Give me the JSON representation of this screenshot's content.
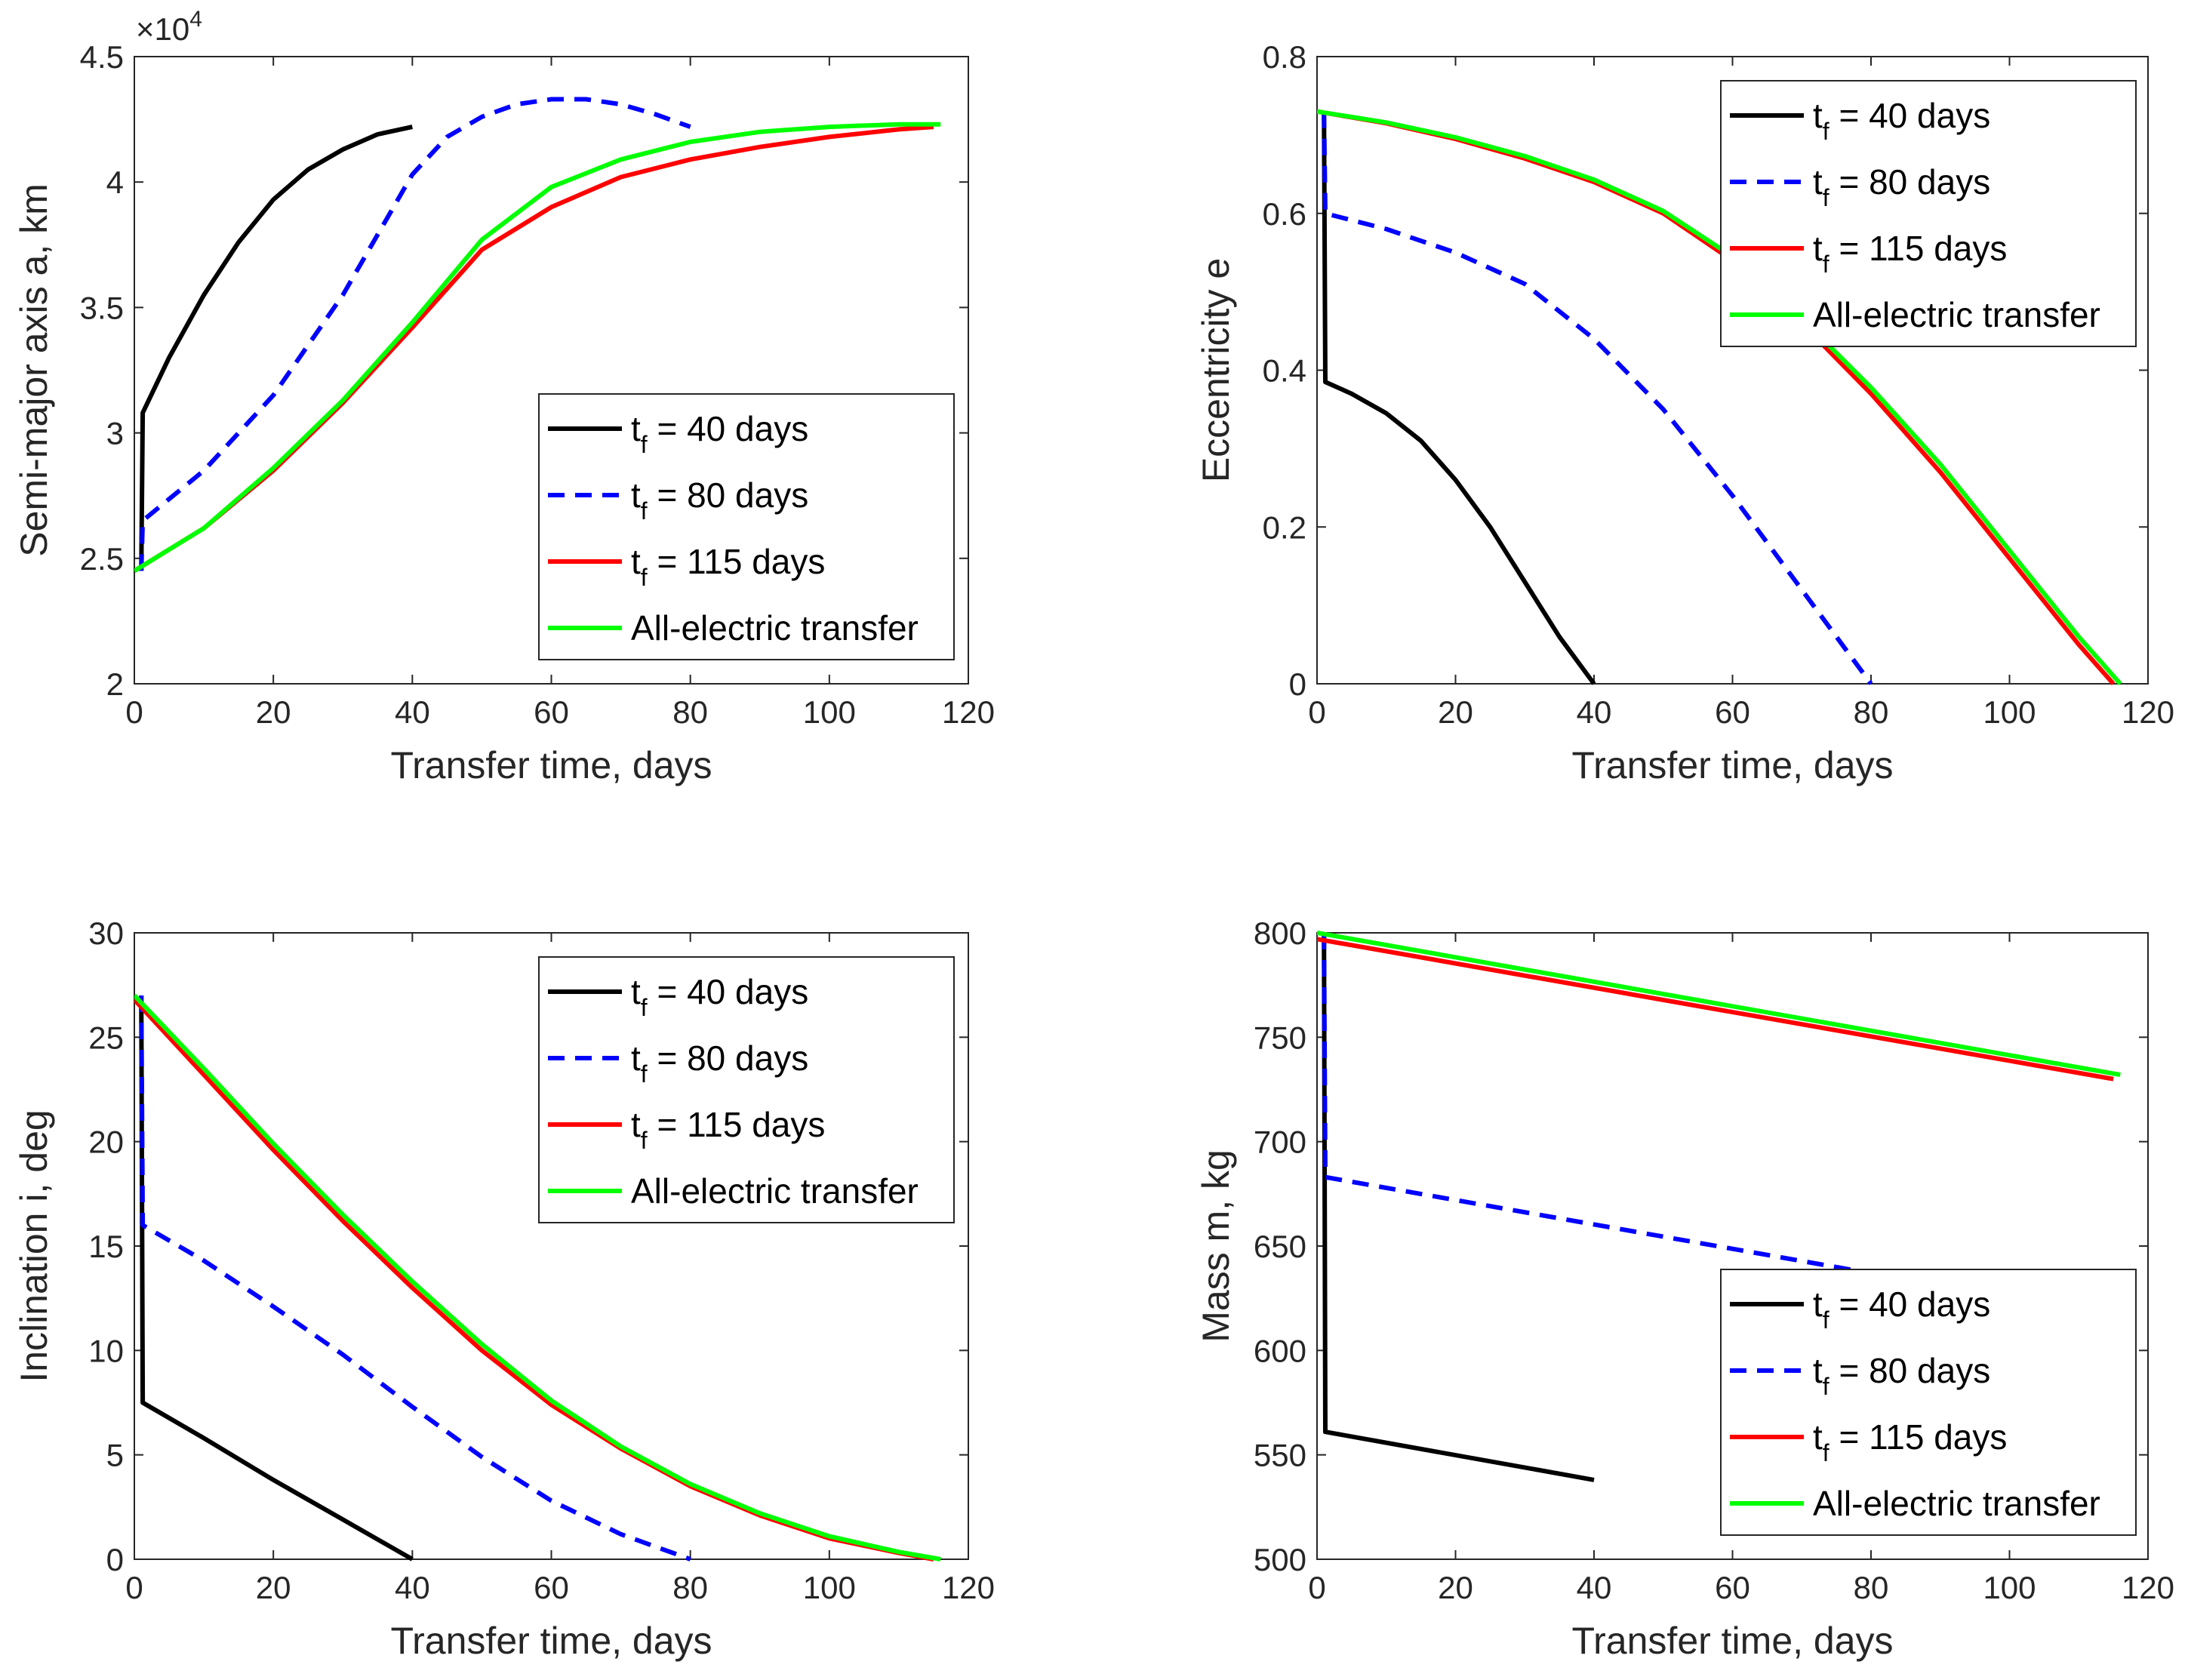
{
  "colors": {
    "tf40": "#000000",
    "tf80": "#0000ff",
    "tf115": "#ff0000",
    "all_electric": "#00ff00",
    "axis": "#262626"
  },
  "chart_data": [
    {
      "type": "line",
      "id": "semi-major-axis",
      "xlabel": "Transfer time, days",
      "ylabel": "Semi-major axis a, km",
      "xlim": [
        0,
        120
      ],
      "ylim": [
        2,
        4.5
      ],
      "xticks": [
        "0",
        "20",
        "40",
        "60",
        "80",
        "100",
        "120"
      ],
      "yticks": [
        "2",
        "2.5",
        "3",
        "3.5",
        "4",
        "4.5"
      ],
      "exponent_label": "×10",
      "exponent_power": "4",
      "legend_position": "lower-right",
      "legend": [
        {
          "key": "tf40",
          "prefix": "t",
          "sub": "f",
          "label": " = 40 days"
        },
        {
          "key": "tf80",
          "prefix": "t",
          "sub": "f",
          "label": " = 80 days"
        },
        {
          "key": "tf115",
          "prefix": "t",
          "sub": "f",
          "label": " = 115 days"
        },
        {
          "key": "all_electric",
          "prefix": "",
          "sub": "",
          "label": "All-electric transfer"
        }
      ],
      "series": [
        {
          "key": "tf40",
          "style": "solid",
          "x": [
            1,
            1,
            1.2,
            5,
            10,
            15,
            20,
            25,
            30,
            35,
            40
          ],
          "y": [
            2.45,
            2.45,
            3.08,
            3.3,
            3.55,
            3.76,
            3.93,
            4.05,
            4.13,
            4.19,
            4.22
          ]
        },
        {
          "key": "tf80",
          "style": "dashed",
          "x": [
            1,
            1,
            1.2,
            10,
            20,
            30,
            40,
            45,
            50,
            55,
            60,
            65,
            70,
            75,
            80
          ],
          "y": [
            2.45,
            2.45,
            2.65,
            2.85,
            3.15,
            3.55,
            4.03,
            4.18,
            4.26,
            4.31,
            4.33,
            4.33,
            4.31,
            4.27,
            4.22
          ]
        },
        {
          "key": "tf115",
          "style": "solid",
          "x": [
            0,
            10,
            20,
            30,
            40,
            50,
            60,
            70,
            80,
            90,
            100,
            110,
            115
          ],
          "y": [
            2.45,
            2.62,
            2.85,
            3.12,
            3.42,
            3.73,
            3.9,
            4.02,
            4.09,
            4.14,
            4.18,
            4.21,
            4.22
          ]
        },
        {
          "key": "all_electric",
          "style": "solid",
          "x": [
            0,
            10,
            20,
            30,
            40,
            50,
            60,
            70,
            80,
            90,
            100,
            110,
            116
          ],
          "y": [
            2.45,
            2.62,
            2.86,
            3.13,
            3.44,
            3.77,
            3.98,
            4.09,
            4.16,
            4.2,
            4.22,
            4.23,
            4.23
          ]
        }
      ]
    },
    {
      "type": "line",
      "id": "eccentricity",
      "xlabel": "Transfer time, days",
      "ylabel": "Eccentricity e",
      "xlim": [
        0,
        120
      ],
      "ylim": [
        0,
        0.8
      ],
      "xticks": [
        "0",
        "20",
        "40",
        "60",
        "80",
        "100",
        "120"
      ],
      "yticks": [
        "0",
        "0.2",
        "0.4",
        "0.6",
        "0.8"
      ],
      "legend_position": "top-right",
      "legend": [
        {
          "key": "tf40",
          "prefix": "t",
          "sub": "f",
          "label": " = 40 days"
        },
        {
          "key": "tf80",
          "prefix": "t",
          "sub": "f",
          "label": " = 80 days"
        },
        {
          "key": "tf115",
          "prefix": "t",
          "sub": "f",
          "label": " = 115 days"
        },
        {
          "key": "all_electric",
          "prefix": "",
          "sub": "",
          "label": "All-electric transfer"
        }
      ],
      "series": [
        {
          "key": "tf40",
          "style": "solid",
          "x": [
            1,
            1,
            1.2,
            5,
            10,
            15,
            20,
            25,
            30,
            35,
            40
          ],
          "y": [
            0.73,
            0.73,
            0.385,
            0.37,
            0.345,
            0.31,
            0.26,
            0.2,
            0.13,
            0.06,
            0.0
          ]
        },
        {
          "key": "tf80",
          "style": "dashed",
          "x": [
            1,
            1,
            1.2,
            10,
            20,
            30,
            40,
            50,
            60,
            70,
            80
          ],
          "y": [
            0.73,
            0.73,
            0.6,
            0.58,
            0.55,
            0.51,
            0.44,
            0.35,
            0.24,
            0.12,
            0.0
          ]
        },
        {
          "key": "tf115",
          "style": "solid",
          "x": [
            0,
            10,
            20,
            30,
            40,
            50,
            60,
            70,
            80,
            90,
            100,
            110,
            115
          ],
          "y": [
            0.73,
            0.715,
            0.695,
            0.67,
            0.64,
            0.6,
            0.54,
            0.46,
            0.37,
            0.27,
            0.16,
            0.05,
            0.0
          ]
        },
        {
          "key": "all_electric",
          "style": "solid",
          "x": [
            0,
            10,
            20,
            30,
            40,
            50,
            60,
            70,
            80,
            90,
            100,
            110,
            116
          ],
          "y": [
            0.73,
            0.716,
            0.697,
            0.673,
            0.643,
            0.603,
            0.545,
            0.466,
            0.378,
            0.28,
            0.17,
            0.06,
            0.0
          ]
        }
      ]
    },
    {
      "type": "line",
      "id": "inclination",
      "xlabel": "Transfer time, days",
      "ylabel": "Inclination i, deg",
      "xlim": [
        0,
        120
      ],
      "ylim": [
        0,
        30
      ],
      "xticks": [
        "0",
        "20",
        "40",
        "60",
        "80",
        "100",
        "120"
      ],
      "yticks": [
        "0",
        "5",
        "10",
        "15",
        "20",
        "25",
        "30"
      ],
      "legend_position": "top-right",
      "legend": [
        {
          "key": "tf40",
          "prefix": "t",
          "sub": "f",
          "label": " = 40 days"
        },
        {
          "key": "tf80",
          "prefix": "t",
          "sub": "f",
          "label": " = 80 days"
        },
        {
          "key": "tf115",
          "prefix": "t",
          "sub": "f",
          "label": " = 115 days"
        },
        {
          "key": "all_electric",
          "prefix": "",
          "sub": "",
          "label": "All-electric transfer"
        }
      ],
      "series": [
        {
          "key": "tf40",
          "style": "solid",
          "x": [
            1,
            1,
            1.2,
            10,
            20,
            30,
            40
          ],
          "y": [
            27,
            27,
            7.5,
            5.8,
            3.8,
            1.9,
            0.0
          ]
        },
        {
          "key": "tf80",
          "style": "dashed",
          "x": [
            1,
            1,
            1.2,
            10,
            20,
            30,
            40,
            50,
            60,
            70,
            80
          ],
          "y": [
            27,
            27,
            16,
            14.3,
            12.1,
            9.8,
            7.3,
            4.9,
            2.8,
            1.2,
            0.0
          ]
        },
        {
          "key": "tf115",
          "style": "solid",
          "x": [
            0,
            10,
            20,
            30,
            40,
            50,
            60,
            70,
            80,
            90,
            100,
            110,
            115
          ],
          "y": [
            26.8,
            23.2,
            19.6,
            16.2,
            13.0,
            10.0,
            7.4,
            5.3,
            3.5,
            2.1,
            1.0,
            0.3,
            0.0
          ]
        },
        {
          "key": "all_electric",
          "style": "solid",
          "x": [
            0,
            10,
            20,
            30,
            40,
            50,
            60,
            70,
            80,
            90,
            100,
            110,
            116
          ],
          "y": [
            27,
            23.5,
            19.9,
            16.5,
            13.3,
            10.3,
            7.6,
            5.4,
            3.6,
            2.2,
            1.1,
            0.35,
            0.0
          ]
        }
      ]
    },
    {
      "type": "line",
      "id": "mass",
      "xlabel": "Transfer time, days",
      "ylabel": "Mass m, kg",
      "xlim": [
        0,
        120
      ],
      "ylim": [
        500,
        800
      ],
      "xticks": [
        "0",
        "20",
        "40",
        "60",
        "80",
        "100",
        "120"
      ],
      "yticks": [
        "500",
        "550",
        "600",
        "650",
        "700",
        "750",
        "800"
      ],
      "legend_position": "bottom-right",
      "legend": [
        {
          "key": "tf40",
          "prefix": "t",
          "sub": "f",
          "label": " = 40 days"
        },
        {
          "key": "tf80",
          "prefix": "t",
          "sub": "f",
          "label": " = 80 days"
        },
        {
          "key": "tf115",
          "prefix": "t",
          "sub": "f",
          "label": " = 115 days"
        },
        {
          "key": "all_electric",
          "prefix": "",
          "sub": "",
          "label": "All-electric transfer"
        }
      ],
      "series": [
        {
          "key": "tf40",
          "style": "solid",
          "x": [
            1,
            1,
            1.2,
            40
          ],
          "y": [
            800,
            800,
            561,
            538
          ]
        },
        {
          "key": "tf80",
          "style": "dashed",
          "x": [
            1,
            1,
            1.2,
            80
          ],
          "y": [
            800,
            800,
            683,
            637
          ]
        },
        {
          "key": "tf115",
          "style": "solid",
          "x": [
            0,
            115
          ],
          "y": [
            797,
            730
          ]
        },
        {
          "key": "all_electric",
          "style": "solid",
          "x": [
            0,
            116
          ],
          "y": [
            800,
            732
          ]
        }
      ]
    }
  ]
}
